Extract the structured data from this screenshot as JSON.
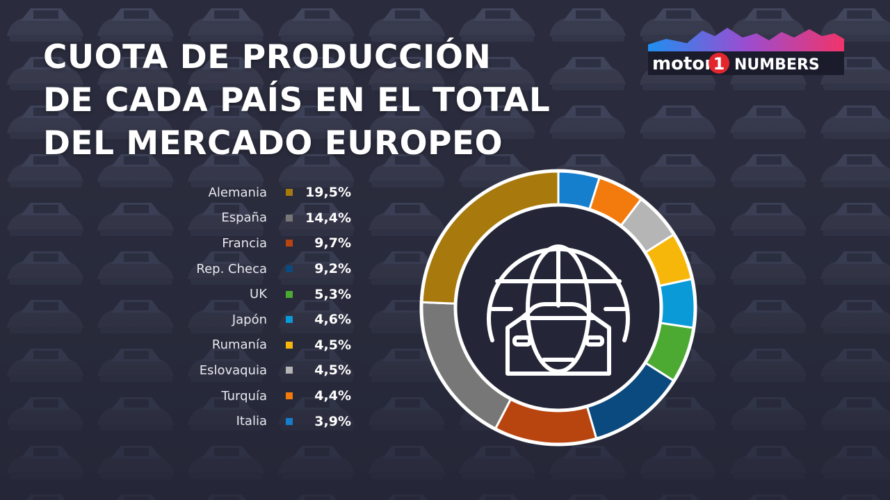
{
  "header": {
    "title_lines": [
      "CUOTA DE PRODUCCIÓN",
      "DE CADA PAÍS EN EL TOTAL",
      "DEL MERCADO EUROPEO"
    ]
  },
  "logo": {
    "brand": "motor",
    "brand_number": "1",
    "suffix": "NUMBERS"
  },
  "chart_data": {
    "type": "pie",
    "title": "CUOTA DE PRODUCCIÓN DE CADA PAÍS EN EL TOTAL DEL MERCADO EUROPEO",
    "legend_placement": "left",
    "categories": [
      "Alemania",
      "España",
      "Francia",
      "Rep. Checa",
      "UK",
      "Japón",
      "Rumanía",
      "Eslovaquia",
      "Turquía",
      "Italia"
    ],
    "labels": [
      "19,5%",
      "14,4%",
      "9,7%",
      "9,2%",
      "5,3%",
      "4,6%",
      "4,5%",
      "4,5%",
      "4,4%",
      "3,9%"
    ],
    "values": [
      19.5,
      14.4,
      9.7,
      9.2,
      5.3,
      4.6,
      4.5,
      4.5,
      4.4,
      3.9
    ],
    "colors": [
      "#a8790c",
      "#777777",
      "#b84510",
      "#0b4a7e",
      "#4caa32",
      "#0a9ad8",
      "#f7b70a",
      "#b5b5b5",
      "#f37a0c",
      "#157fce"
    ],
    "center_icon": "globe-car-icon"
  }
}
